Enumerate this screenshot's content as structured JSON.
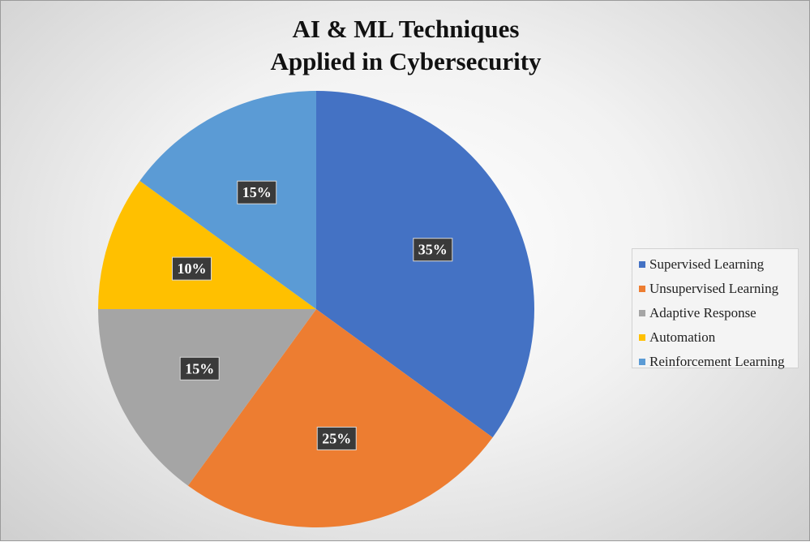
{
  "chart_data": {
    "type": "pie",
    "title": [
      "AI & ML Techniques",
      "Applied in Cybersecurity"
    ],
    "legend_position": "right",
    "slices": [
      {
        "label": "Supervised Learning",
        "value": 35,
        "display": "35%",
        "color": "#4472C4"
      },
      {
        "label": "Unsupervised Learning",
        "value": 25,
        "display": "25%",
        "color": "#ED7D31"
      },
      {
        "label": "Adaptive Response",
        "value": 15,
        "display": "15%",
        "color": "#A5A5A5"
      },
      {
        "label": "Automation",
        "value": 10,
        "display": "10%",
        "color": "#FFC000"
      },
      {
        "label": "Reinforcement Learning",
        "value": 15,
        "display": "15%",
        "color": "#5B9BD5"
      }
    ]
  }
}
